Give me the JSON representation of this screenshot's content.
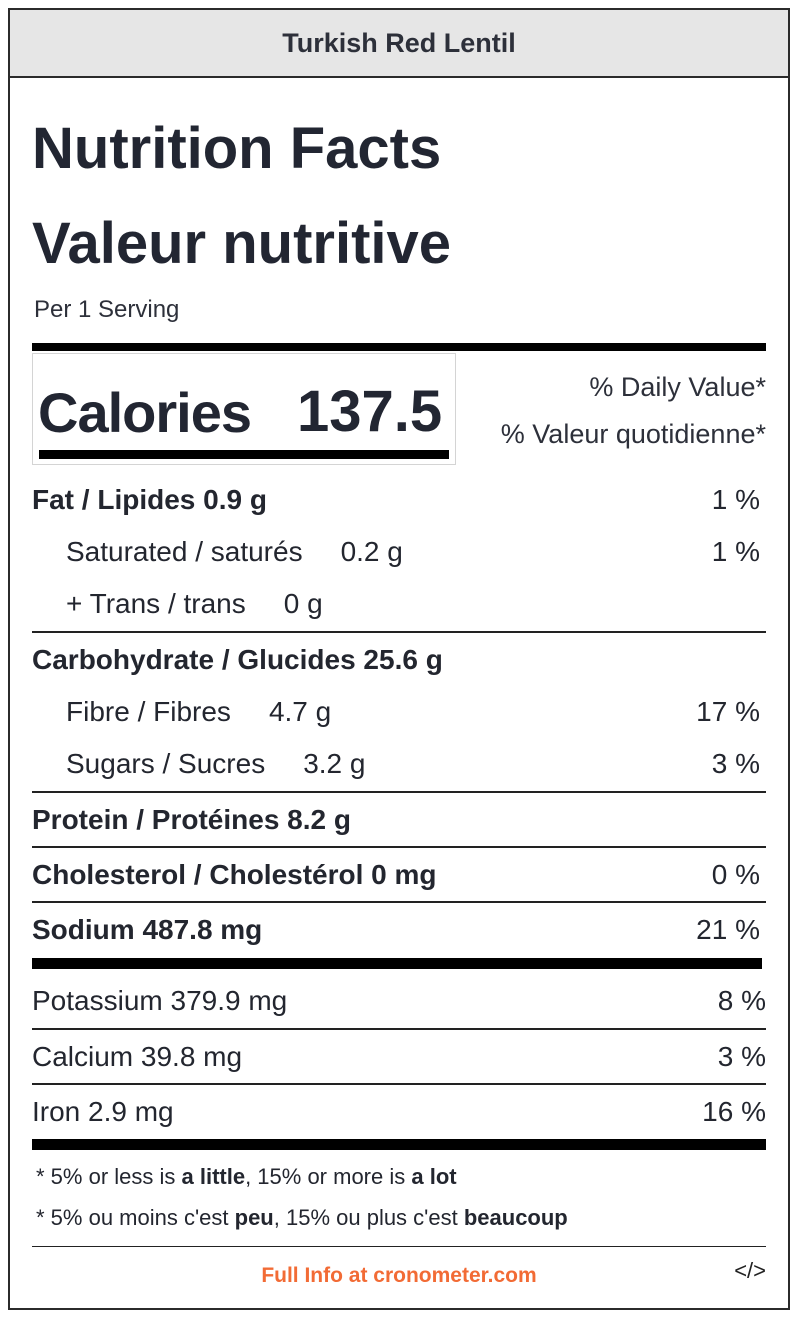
{
  "title": "Turkish Red Lentil",
  "heading_en": "Nutrition Facts",
  "heading_fr": "Valeur nutritive",
  "serving": "Per 1 Serving",
  "calories": {
    "label": "Calories",
    "value": "137.5"
  },
  "daily_value": {
    "en": "% Daily Value*",
    "fr": "% Valeur quotidienne*"
  },
  "nutrients": [
    {
      "label": "Fat / Lipides 0.9 g",
      "pct": "1 %"
    },
    {
      "label": "Saturated / saturés",
      "amount": "0.2 g",
      "pct": "1 %"
    },
    {
      "label": "+ Trans / trans",
      "amount": "0 g",
      "pct": ""
    },
    {
      "label": "Carbohydrate / Glucides 25.6 g",
      "pct": ""
    },
    {
      "label": "Fibre / Fibres",
      "amount": "4.7 g",
      "pct": "17 %"
    },
    {
      "label": "Sugars / Sucres",
      "amount": "3.2 g",
      "pct": "3 %"
    },
    {
      "label": "Protein / Protéines 8.2 g",
      "pct": ""
    },
    {
      "label": "Cholesterol / Cholestérol 0 mg",
      "pct": "0 %"
    },
    {
      "label": "Sodium 487.8 mg",
      "pct": "21 %"
    }
  ],
  "minerals": [
    {
      "label": "Potassium 379.9 mg",
      "pct": "8 %"
    },
    {
      "label": "Calcium 39.8 mg",
      "pct": "3 %"
    },
    {
      "label": "Iron 2.9 mg",
      "pct": "16 %"
    }
  ],
  "footnote_en": {
    "a": "* 5% or less is ",
    "b": "a little",
    "c": ", 15% or more is ",
    "d": "a lot"
  },
  "footnote_fr": {
    "a": "* 5% ou moins c'est ",
    "b": "peu",
    "c": ", 15% ou plus c'est ",
    "d": "beaucoup"
  },
  "link_text": "Full Info at cronometer.com",
  "embed_icon": "</>",
  "colors": {
    "link": "#f26b35",
    "title_bg": "#e6e6e6"
  }
}
